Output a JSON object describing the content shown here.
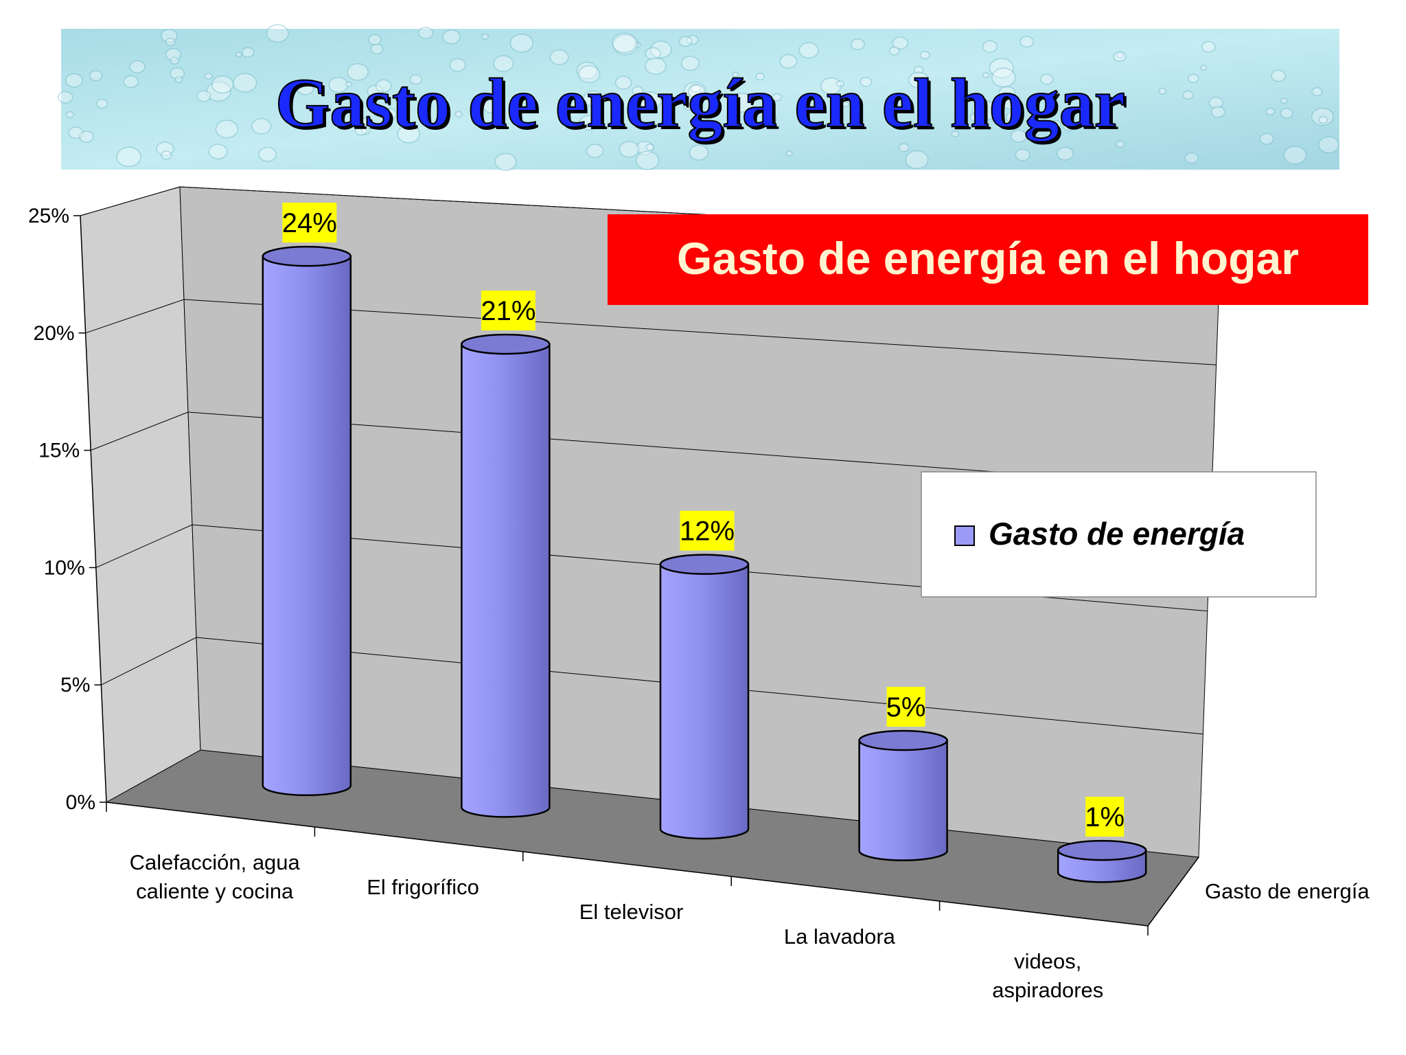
{
  "banner": {
    "title": "Gasto de energía en el hogar"
  },
  "chart_data": {
    "type": "bar",
    "title": "Gasto de energía en el hogar",
    "categories": [
      "Calefacción, agua caliente y cocina",
      "El frigorífico",
      "El televisor",
      "La lavadora",
      "videos, aspiradores"
    ],
    "category_lines": [
      [
        "Calefacción, agua",
        "caliente y cocina"
      ],
      [
        "El frigorífico"
      ],
      [
        "El televisor"
      ],
      [
        "La lavadora"
      ],
      [
        "videos,",
        "aspiradores"
      ]
    ],
    "series": [
      {
        "name": "Gasto de energía",
        "values": [
          0.24,
          0.21,
          0.12,
          0.05,
          0.01
        ]
      }
    ],
    "data_labels": [
      "24%",
      "21%",
      "12%",
      "5%",
      "1%"
    ],
    "ylim": [
      0,
      0.25
    ],
    "yticks": [
      "0%",
      "5%",
      "10%",
      "15%",
      "20%",
      "25%"
    ],
    "depth_axis_label": "Gasto de energía",
    "legend": {
      "entry": "Gasto de energía",
      "placement": "right"
    },
    "colors": {
      "bar": "#9b9bf7",
      "bar_dark": "#6e6ec8",
      "bar_top": "#7b7bd4",
      "back_wall": "#c0c0c0",
      "side_wall": "#d0d0d0",
      "floor": "#808080",
      "data_label_bg": "#ffff00",
      "title_box": "#ff0000",
      "title_box_text": "#fff5d0",
      "banner_text": "#1a2aff"
    }
  }
}
